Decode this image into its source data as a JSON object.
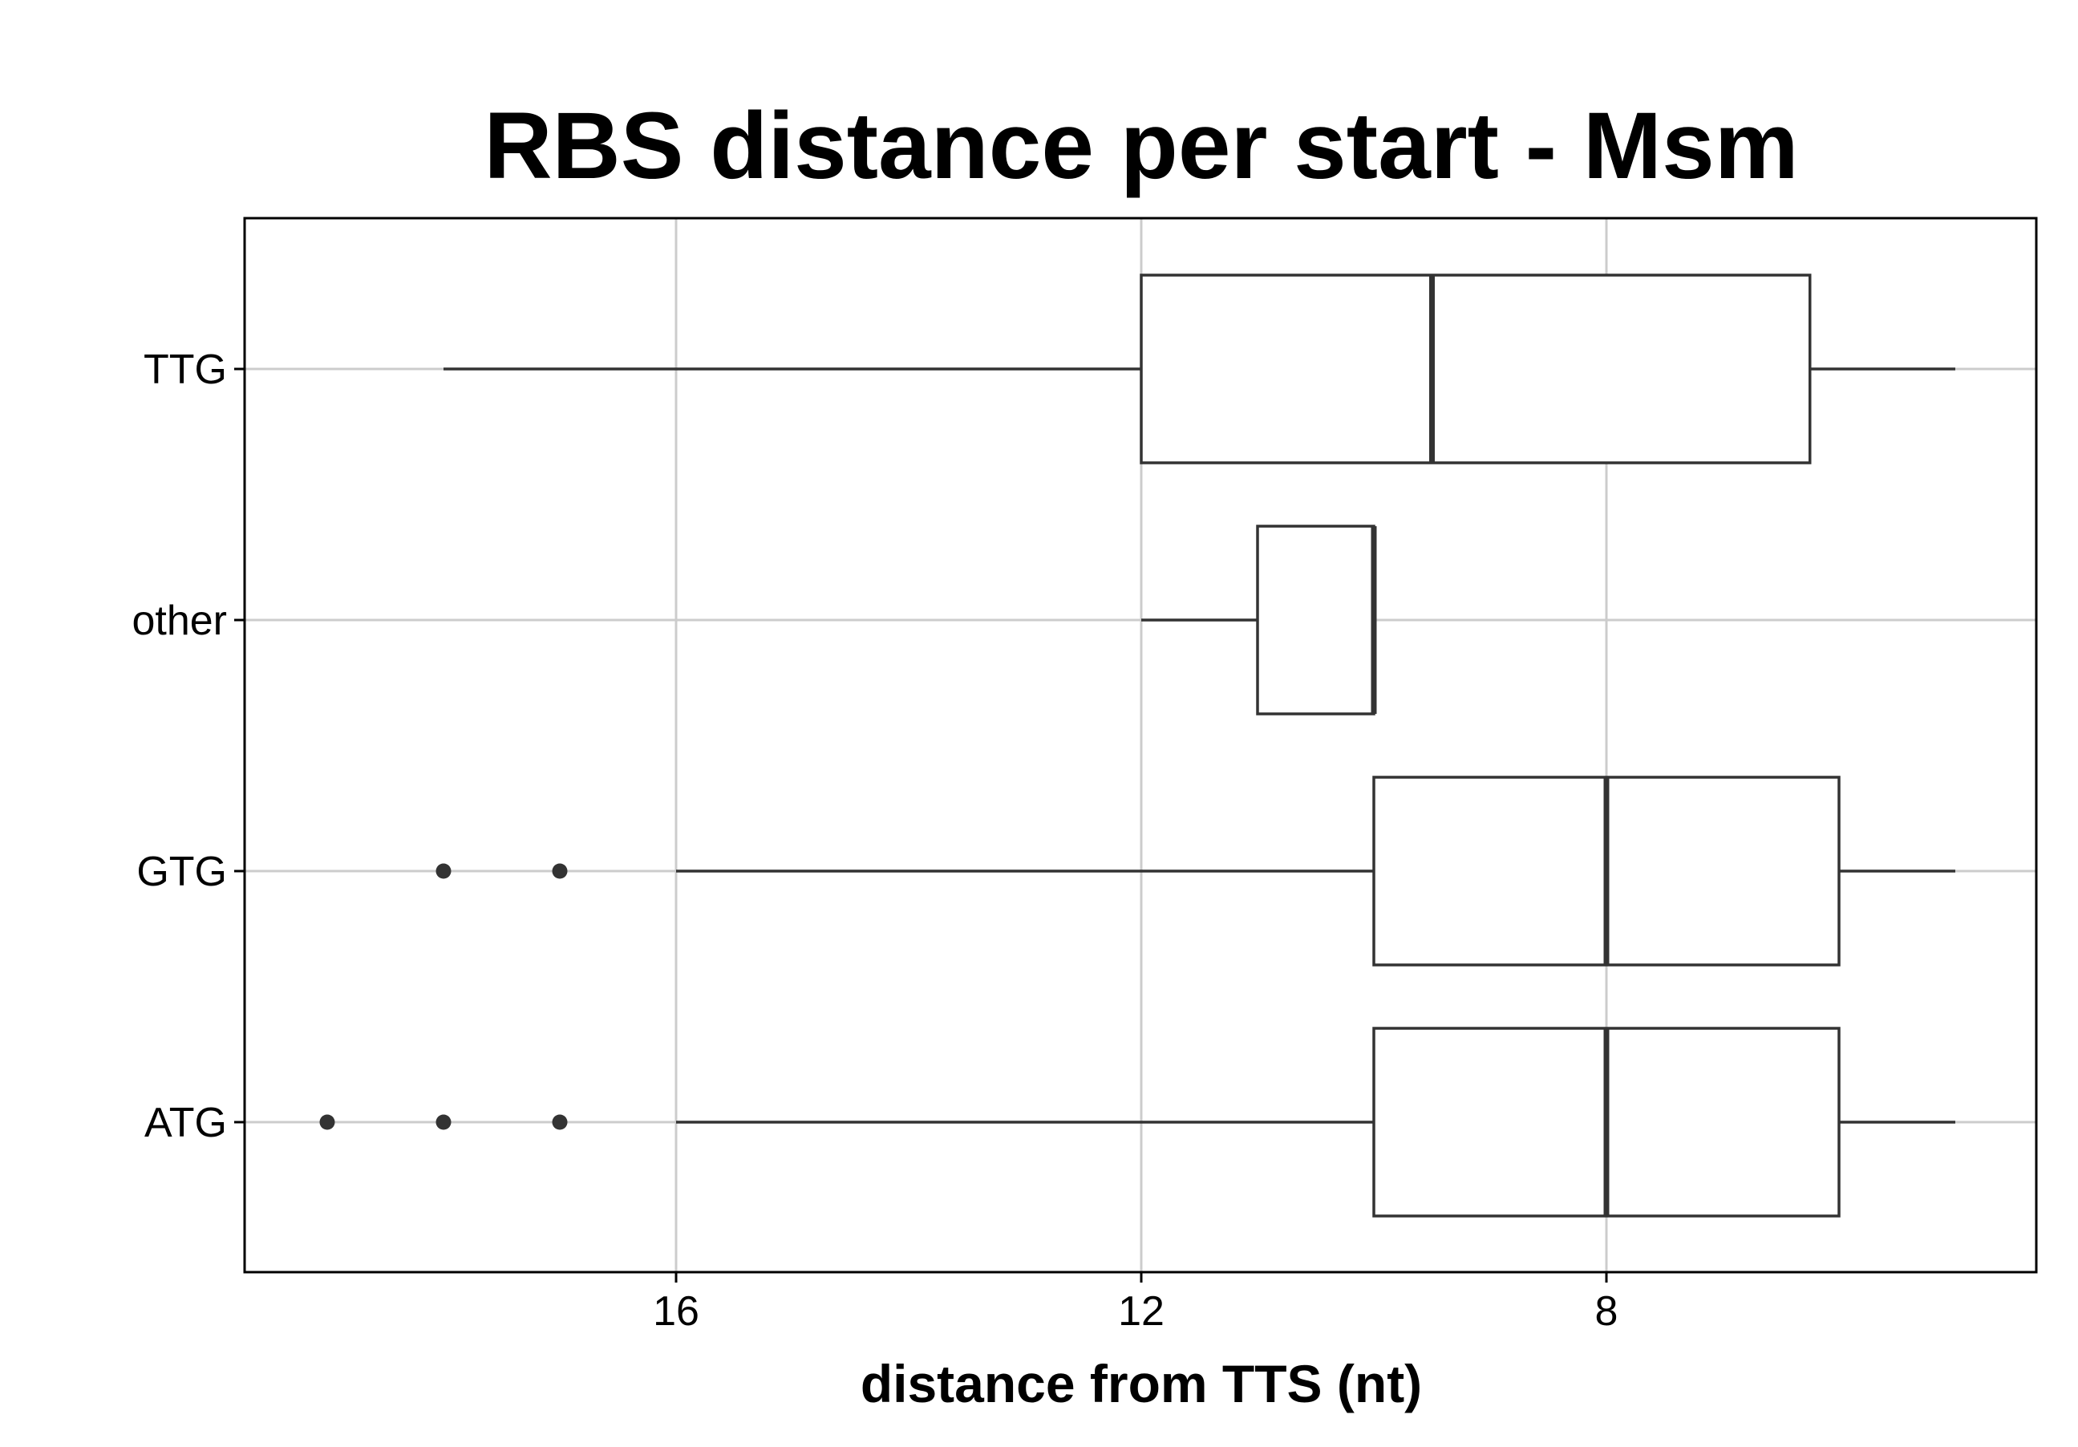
{
  "chart_data": {
    "type": "boxplot",
    "title": "RBS distance per start - Msm",
    "xlabel": "distance from TTS (nt)",
    "ylabel": "",
    "x_reversed": true,
    "xlim": [
      19.7,
      4.3
    ],
    "x_ticks": [
      16,
      12,
      8
    ],
    "x_tick_labels": [
      "16",
      "12",
      "8"
    ],
    "grid": true,
    "categories": [
      "TTG",
      "other",
      "GTG",
      "ATG"
    ],
    "boxes": [
      {
        "category": "TTG",
        "whisker_low": 5,
        "q1": 6.25,
        "median": 9.5,
        "q3": 12,
        "whisker_high": 18,
        "outliers": []
      },
      {
        "category": "other",
        "whisker_low": 10,
        "q1": 10,
        "median": 10,
        "q3": 11,
        "whisker_high": 12,
        "outliers": []
      },
      {
        "category": "GTG",
        "whisker_low": 5,
        "q1": 6,
        "median": 8,
        "q3": 10,
        "whisker_high": 16,
        "outliers": [
          17,
          18
        ]
      },
      {
        "category": "ATG",
        "whisker_low": 5,
        "q1": 6,
        "median": 8,
        "q3": 10,
        "whisker_high": 16,
        "outliers": [
          17,
          18,
          19
        ]
      }
    ],
    "colors": {
      "box_stroke": "#333333",
      "grid": "#cccccc",
      "frame": "#000000",
      "outlier": "#333333"
    }
  }
}
